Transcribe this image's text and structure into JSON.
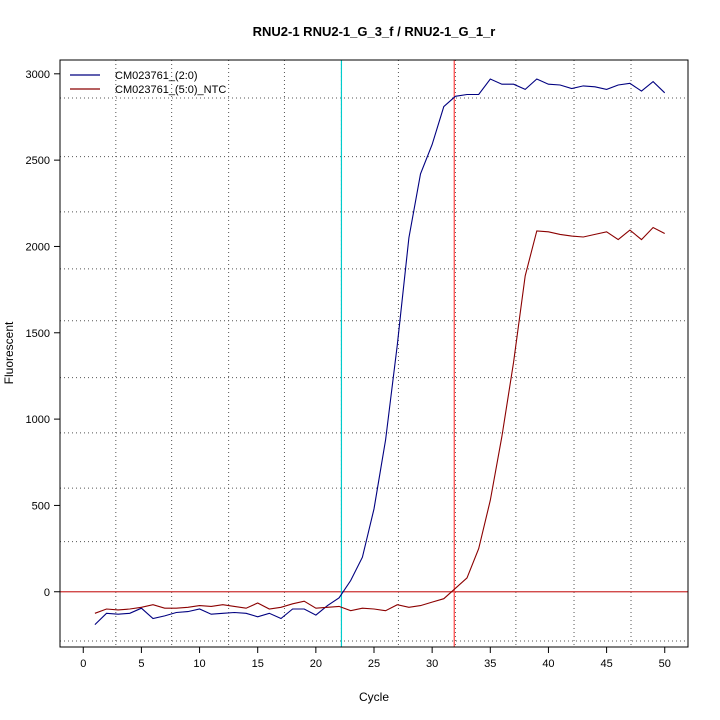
{
  "chart_data": {
    "type": "line",
    "title": "RNU2-1  RNU2-1_G_3_f / RNU2-1_G_1_r",
    "xlabel": "Cycle",
    "ylabel": "Fluorescent",
    "xlim": [
      -2,
      52
    ],
    "ylim": [
      -320,
      3080
    ],
    "x_ticks": [
      0,
      5,
      10,
      15,
      20,
      25,
      30,
      35,
      40,
      45,
      50
    ],
    "y_ticks": [
      0,
      500,
      1000,
      1500,
      2000,
      2500,
      3000
    ],
    "grid": true,
    "grid_x": [
      2.8,
      7.6,
      12.5,
      17.3,
      22.2,
      27.1,
      32.0,
      37.2,
      42.2,
      47.1
    ],
    "grid_y": [
      -285,
      290,
      600,
      920,
      1240,
      1570,
      1870,
      2200,
      2520,
      2860
    ],
    "legend_position": "top-left",
    "horizontal_line": {
      "y": 0,
      "color": "#cc3333"
    },
    "vertical_lines": [
      {
        "x": 22.2,
        "color": "#00cccc"
      },
      {
        "x": 31.9,
        "color": "#ff4444"
      }
    ],
    "x": [
      1,
      2,
      3,
      4,
      5,
      6,
      7,
      8,
      9,
      10,
      11,
      12,
      13,
      14,
      15,
      16,
      17,
      18,
      19,
      20,
      21,
      22,
      23,
      24,
      25,
      26,
      27,
      28,
      29,
      30,
      31,
      32,
      33,
      34,
      35,
      36,
      37,
      38,
      39,
      40,
      41,
      42,
      43,
      44,
      45,
      46,
      47,
      48,
      49,
      50
    ],
    "series": [
      {
        "name": "CM023761_(2:0)",
        "color": "#000080",
        "values": [
          -190,
          -125,
          -130,
          -125,
          -95,
          -155,
          -140,
          -120,
          -115,
          -100,
          -130,
          -125,
          -120,
          -125,
          -145,
          -125,
          -155,
          -100,
          -100,
          -135,
          -80,
          -35,
          65,
          200,
          480,
          880,
          1430,
          2050,
          2420,
          2590,
          2810,
          2870,
          2880,
          2880,
          2970,
          2940,
          2940,
          2910,
          2970,
          2940,
          2935,
          2915,
          2930,
          2925,
          2910,
          2935,
          2945,
          2900,
          2955,
          2890
        ]
      },
      {
        "name": "CM023761_(5:0)_NTC",
        "color": "#8b0000",
        "values": [
          -125,
          -100,
          -105,
          -100,
          -90,
          -75,
          -95,
          -95,
          -90,
          -80,
          -85,
          -75,
          -85,
          -95,
          -65,
          -100,
          -90,
          -70,
          -55,
          -95,
          -90,
          -85,
          -110,
          -95,
          -100,
          -110,
          -75,
          -90,
          -80,
          -60,
          -40,
          20,
          80,
          250,
          530,
          900,
          1330,
          1830,
          2090,
          2085,
          2070,
          2060,
          2055,
          2070,
          2085,
          2040,
          2095,
          2040,
          2110,
          2075
        ]
      }
    ]
  }
}
